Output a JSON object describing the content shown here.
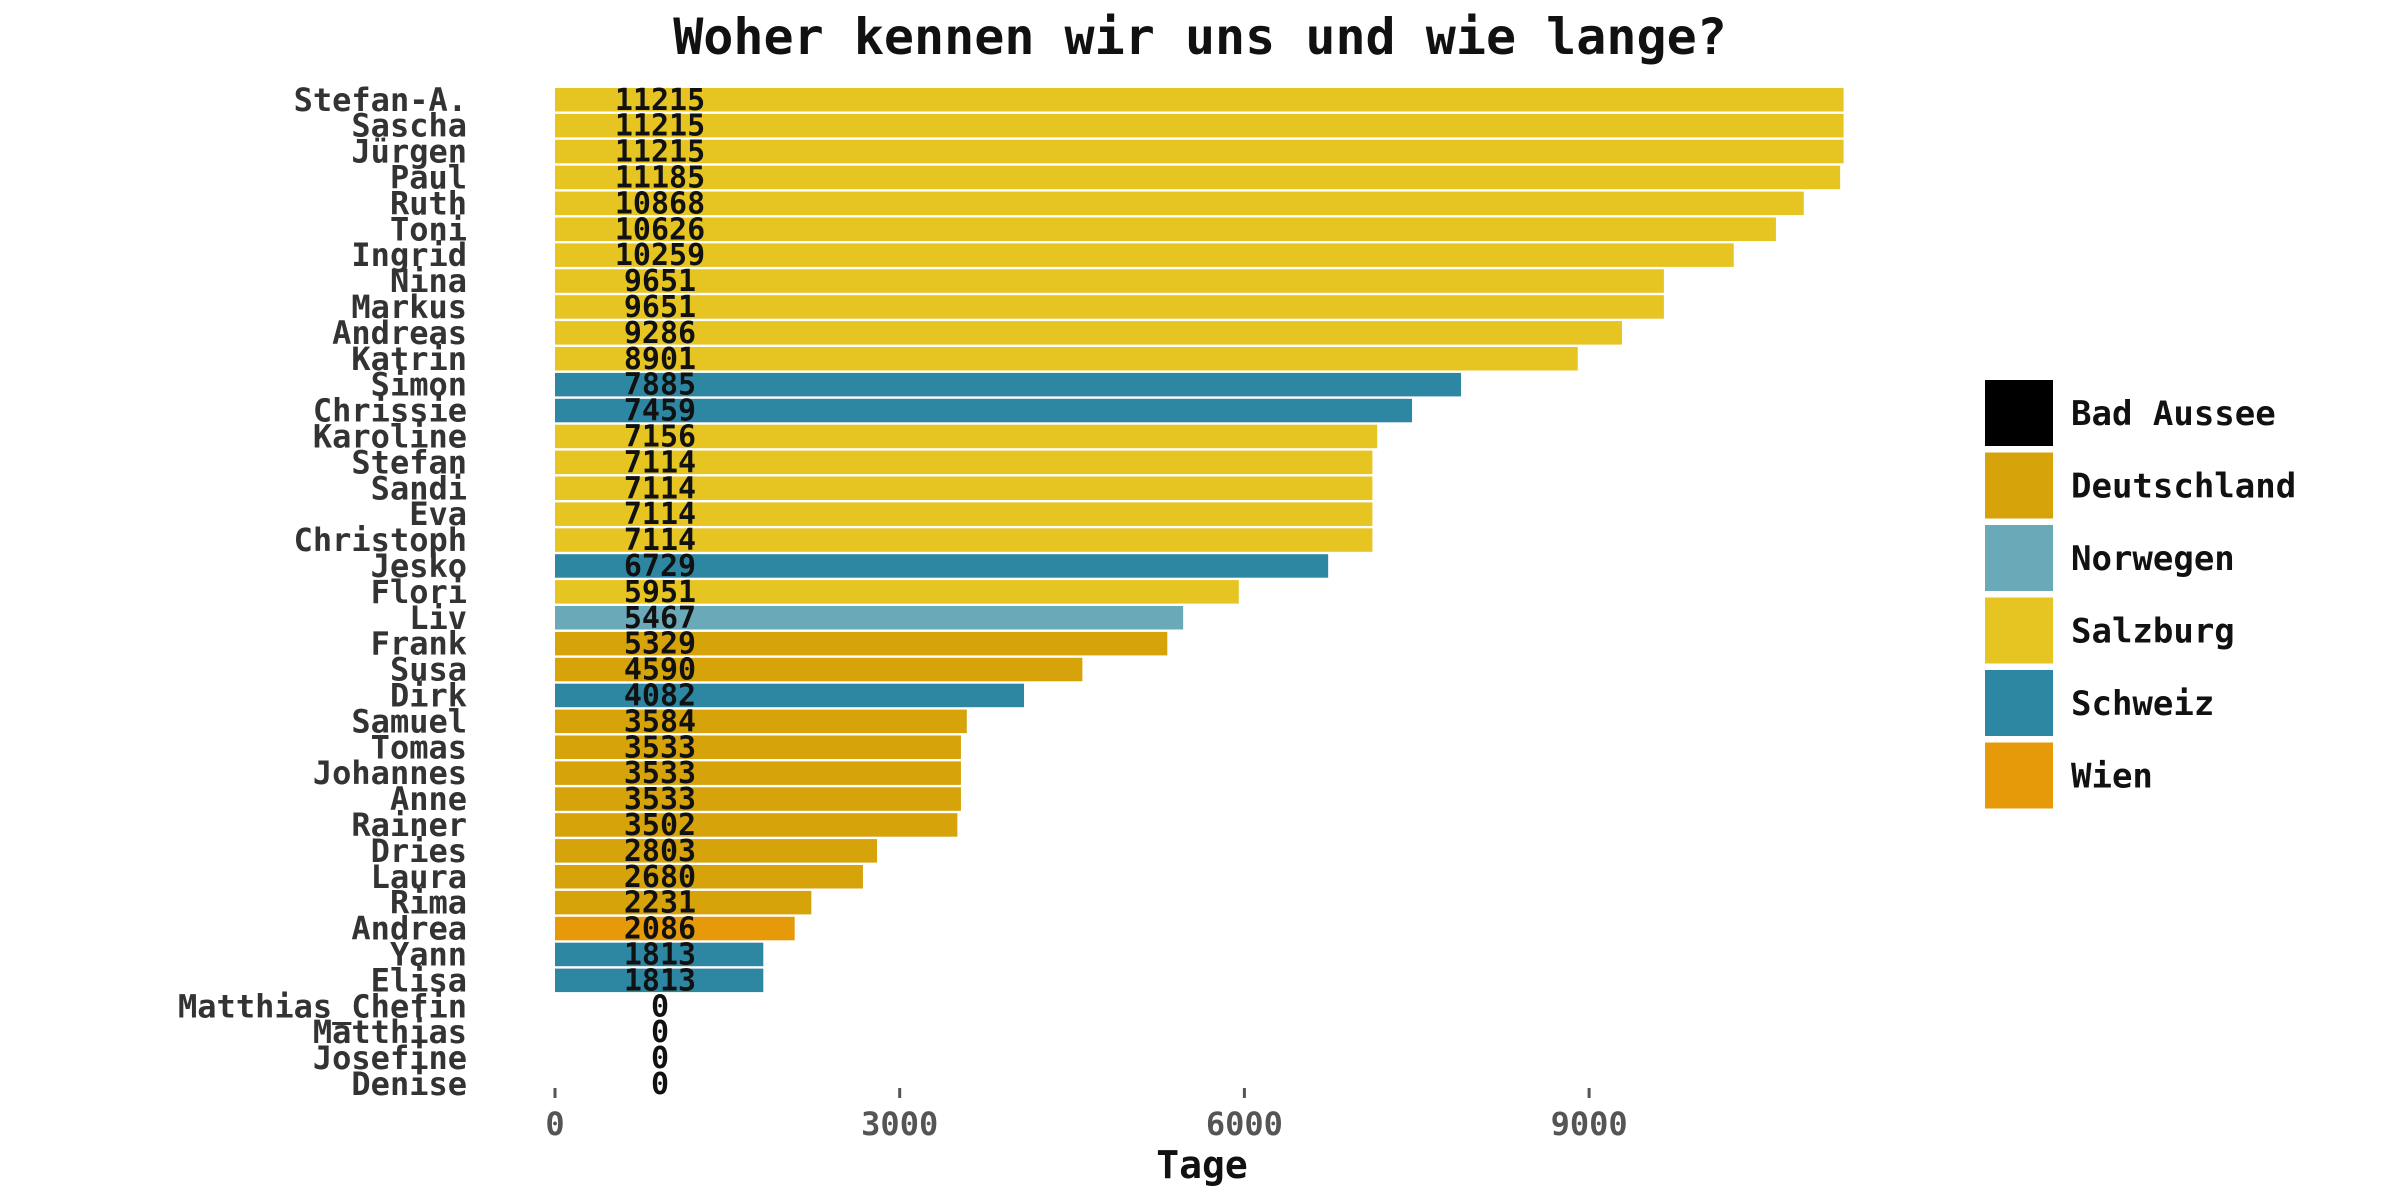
{
  "chart_data": {
    "type": "bar",
    "orientation": "horizontal",
    "title": "Woher kennen wir uns und wie lange?",
    "xlabel": "Tage",
    "ylabel": "",
    "xlim": [
      0,
      11500
    ],
    "xticks": [
      0,
      3000,
      6000,
      9000
    ],
    "grid": false,
    "legend_position": "right",
    "legend": [
      {
        "name": "Bad Aussee",
        "color": "#000000"
      },
      {
        "name": "Deutschland",
        "color": "#D6A30B"
      },
      {
        "name": "Norwegen",
        "color": "#6AAAB8"
      },
      {
        "name": "Salzburg",
        "color": "#E6C422"
      },
      {
        "name": "Schweiz",
        "color": "#2E87A2"
      },
      {
        "name": "Wien",
        "color": "#E69A09"
      }
    ],
    "bars": [
      {
        "name": "Stefan-A.",
        "value": 11215,
        "group": "Salzburg"
      },
      {
        "name": "Sascha",
        "value": 11215,
        "group": "Salzburg"
      },
      {
        "name": "Jürgen",
        "value": 11215,
        "group": "Salzburg"
      },
      {
        "name": "Paul",
        "value": 11185,
        "group": "Salzburg"
      },
      {
        "name": "Ruth",
        "value": 10868,
        "group": "Salzburg"
      },
      {
        "name": "Toni",
        "value": 10626,
        "group": "Salzburg"
      },
      {
        "name": "Ingrid",
        "value": 10259,
        "group": "Salzburg"
      },
      {
        "name": "Nina",
        "value": 9651,
        "group": "Salzburg"
      },
      {
        "name": "Markus",
        "value": 9651,
        "group": "Salzburg"
      },
      {
        "name": "Andreas",
        "value": 9286,
        "group": "Salzburg"
      },
      {
        "name": "Katrin",
        "value": 8901,
        "group": "Salzburg"
      },
      {
        "name": "Simon",
        "value": 7885,
        "group": "Schweiz"
      },
      {
        "name": "Chrissie",
        "value": 7459,
        "group": "Schweiz"
      },
      {
        "name": "Karoline",
        "value": 7156,
        "group": "Salzburg"
      },
      {
        "name": "Stefan",
        "value": 7114,
        "group": "Salzburg"
      },
      {
        "name": "Sandi",
        "value": 7114,
        "group": "Salzburg"
      },
      {
        "name": "Eva",
        "value": 7114,
        "group": "Salzburg"
      },
      {
        "name": "Christoph",
        "value": 7114,
        "group": "Salzburg"
      },
      {
        "name": "Jesko",
        "value": 6729,
        "group": "Schweiz"
      },
      {
        "name": "Flori",
        "value": 5951,
        "group": "Salzburg"
      },
      {
        "name": "Liv",
        "value": 5467,
        "group": "Norwegen"
      },
      {
        "name": "Frank",
        "value": 5329,
        "group": "Deutschland"
      },
      {
        "name": "Susa",
        "value": 4590,
        "group": "Deutschland"
      },
      {
        "name": "Dirk",
        "value": 4082,
        "group": "Schweiz"
      },
      {
        "name": "Samuel",
        "value": 3584,
        "group": "Deutschland"
      },
      {
        "name": "Tomas",
        "value": 3533,
        "group": "Deutschland"
      },
      {
        "name": "Johannes",
        "value": 3533,
        "group": "Deutschland"
      },
      {
        "name": "Anne",
        "value": 3533,
        "group": "Deutschland"
      },
      {
        "name": "Rainer",
        "value": 3502,
        "group": "Deutschland"
      },
      {
        "name": "Dries",
        "value": 2803,
        "group": "Deutschland"
      },
      {
        "name": "Laura",
        "value": 2680,
        "group": "Deutschland"
      },
      {
        "name": "Rima",
        "value": 2231,
        "group": "Deutschland"
      },
      {
        "name": "Andrea",
        "value": 2086,
        "group": "Wien"
      },
      {
        "name": "Yann",
        "value": 1813,
        "group": "Schweiz"
      },
      {
        "name": "Elisa",
        "value": 1813,
        "group": "Schweiz"
      },
      {
        "name": "Matthias_Chefin",
        "value": 0,
        "group": "Bad Aussee"
      },
      {
        "name": "Matthias",
        "value": 0,
        "group": "Bad Aussee"
      },
      {
        "name": "Josefine",
        "value": 0,
        "group": "Bad Aussee"
      },
      {
        "name": "Denise",
        "value": 0,
        "group": "Bad Aussee"
      }
    ]
  }
}
